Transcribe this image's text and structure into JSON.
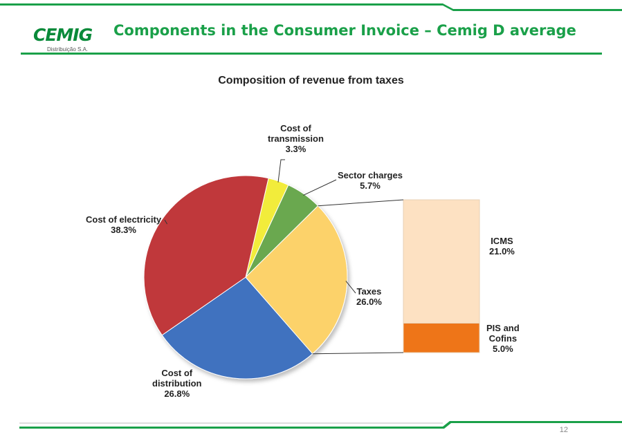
{
  "header": {
    "title": "Components in the Consumer Invoice – Cemig D average",
    "logo_text": "CEMIG",
    "logo_subtext": "Distribuição S.A."
  },
  "footer": {
    "page_number": "12"
  },
  "colors": {
    "brand_green": "#1aa049",
    "dark_green": "#0a8a3a"
  },
  "chart_data": {
    "type": "pie",
    "title": "Composition of revenue from taxes",
    "slices": [
      {
        "name": "Cost of transmission",
        "value": 3.3,
        "label": "3.3%",
        "color": "#f2ec3a"
      },
      {
        "name": "Sector charges",
        "value": 5.7,
        "label": "5.7%",
        "color": "#6aa84f"
      },
      {
        "name": "Taxes",
        "value": 26.0,
        "label": "26.0%",
        "color": "#fcd26a"
      },
      {
        "name": "Cost of distribution",
        "value": 26.8,
        "label": "26.8%",
        "color": "#3f72bf"
      },
      {
        "name": "Cost of electricity",
        "value": 38.3,
        "label": "38.3%",
        "color": "#c0393a"
      }
    ],
    "breakdown": {
      "of": "Taxes",
      "type": "stacked_bar",
      "segments": [
        {
          "name": "ICMS",
          "value": 21.0,
          "label": "21.0%",
          "color": "#fde1c2"
        },
        {
          "name": "PIS and Cofins",
          "value": 5.0,
          "label": "5.0%",
          "color": "#ee7518"
        }
      ]
    }
  }
}
